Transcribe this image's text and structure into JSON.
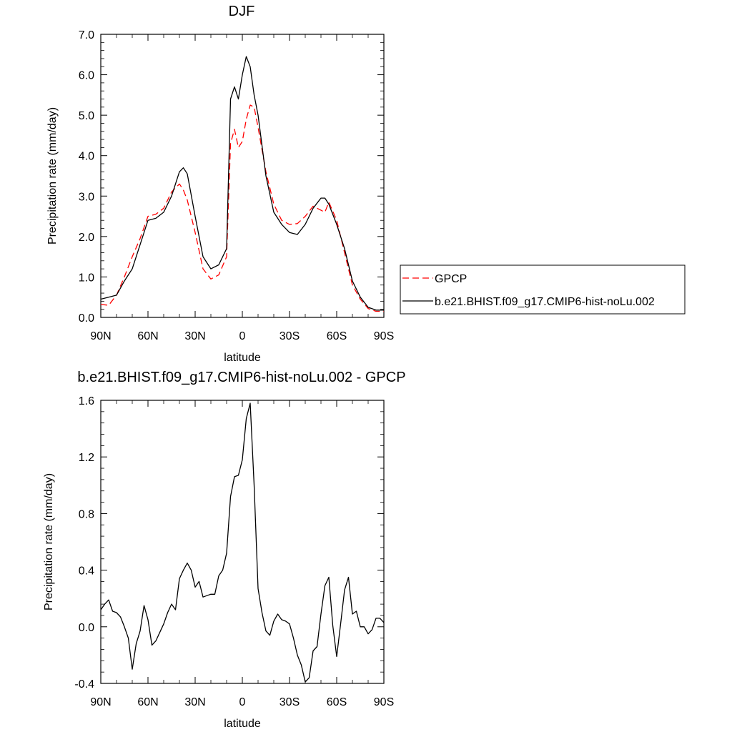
{
  "figure": {
    "legend": {
      "entries": [
        {
          "label": "GPCP",
          "color": "#ff0000",
          "dash": "dashed"
        },
        {
          "label": "b.e21.BHIST.f09_g17.CMIP6-hist-noLu.002",
          "color": "#000000",
          "dash": "solid"
        }
      ],
      "placement": "right of top panel"
    }
  },
  "chart_data": [
    {
      "type": "line",
      "title": "DJF",
      "xlabel": "latitude",
      "ylabel": "Precipitation rate (mm/day)",
      "xlim": [
        90,
        -90
      ],
      "ylim": [
        0,
        7
      ],
      "x_ticks": [
        90,
        60,
        30,
        0,
        -30,
        -60,
        -90
      ],
      "x_tick_labels": [
        "90N",
        "60N",
        "30N",
        "0",
        "30S",
        "60S",
        "90S"
      ],
      "y_ticks": [
        0,
        1,
        2,
        3,
        4,
        5,
        6,
        7
      ],
      "y_tick_labels": [
        "0.0",
        "1.0",
        "2.0",
        "3.0",
        "4.0",
        "5.0",
        "6.0",
        "7.0"
      ],
      "grid": false,
      "x": [
        90,
        85,
        80,
        75,
        70,
        65,
        60,
        55,
        50,
        45,
        40,
        37.5,
        35,
        30,
        25,
        20,
        15,
        10,
        7.5,
        5,
        2.5,
        0,
        -2.5,
        -5,
        -7.5,
        -10,
        -15,
        -20,
        -25,
        -30,
        -35,
        -40,
        -45,
        -50,
        -52.5,
        -55,
        -60,
        -65,
        -70,
        -75,
        -80,
        -85,
        -90
      ],
      "series": [
        {
          "name": "GPCP",
          "color": "#ff0000",
          "dash": "dashed",
          "values": [
            0.32,
            0.3,
            0.55,
            1.0,
            1.5,
            1.95,
            2.5,
            2.55,
            2.7,
            3.1,
            3.3,
            3.15,
            2.9,
            2.1,
            1.2,
            0.95,
            1.05,
            1.5,
            4.3,
            4.65,
            4.2,
            4.35,
            4.9,
            5.25,
            5.2,
            4.7,
            3.6,
            2.8,
            2.4,
            2.3,
            2.32,
            2.5,
            2.75,
            2.65,
            2.6,
            2.85,
            2.4,
            1.6,
            0.8,
            0.45,
            0.22,
            0.15,
            0.15
          ]
        },
        {
          "name": "b.e21.BHIST.f09_g17.CMIP6-hist-noLu.002",
          "color": "#000000",
          "dash": "solid",
          "values": [
            0.45,
            0.5,
            0.55,
            0.9,
            1.2,
            1.8,
            2.4,
            2.45,
            2.6,
            3.0,
            3.6,
            3.7,
            3.55,
            2.5,
            1.5,
            1.2,
            1.3,
            1.7,
            5.4,
            5.7,
            5.4,
            6.0,
            6.45,
            6.2,
            5.5,
            5.0,
            3.5,
            2.6,
            2.3,
            2.1,
            2.05,
            2.3,
            2.7,
            2.95,
            2.95,
            2.8,
            2.3,
            1.7,
            0.9,
            0.5,
            0.25,
            0.18,
            0.18
          ]
        }
      ]
    },
    {
      "type": "line",
      "title": "b.e21.BHIST.f09_g17.CMIP6-hist-noLu.002 - GPCP",
      "xlabel": "latitude",
      "ylabel": "Precipitation rate (mm/day)",
      "xlim": [
        90,
        -90
      ],
      "ylim": [
        -0.4,
        1.6
      ],
      "x_ticks": [
        90,
        60,
        30,
        0,
        -30,
        -60,
        -90
      ],
      "x_tick_labels": [
        "90N",
        "60N",
        "30N",
        "0",
        "30S",
        "60S",
        "90S"
      ],
      "y_ticks": [
        -0.4,
        0.0,
        0.4,
        0.8,
        1.2,
        1.6
      ],
      "y_tick_labels": [
        "-0.4",
        "0.0",
        "0.4",
        "0.8",
        "1.2",
        "1.6"
      ],
      "grid": false,
      "series": [
        {
          "name": "b.e21.BHIST.f09_g17.CMIP6-hist-noLu.002 - GPCP",
          "color": "#000000",
          "dash": "solid",
          "x": [
            90,
            87.5,
            85,
            82.5,
            80,
            77.5,
            75,
            72.5,
            70,
            67.5,
            65,
            62.5,
            60,
            57.5,
            55,
            52.5,
            50,
            47.5,
            45,
            42.5,
            40,
            37.5,
            35,
            32.5,
            30,
            27.5,
            25,
            22.5,
            20,
            17.5,
            15,
            12.5,
            10,
            7.5,
            5,
            2.5,
            0,
            -2.5,
            -5,
            -7.5,
            -10,
            -12.5,
            -15,
            -17.5,
            -20,
            -22.5,
            -25,
            -27.5,
            -30,
            -32.5,
            -35,
            -37.5,
            -40,
            -42.5,
            -45,
            -47.5,
            -50,
            -52.5,
            -55,
            -57.5,
            -60,
            -62.5,
            -65,
            -67.5,
            -70,
            -72.5,
            -75,
            -77.5,
            -80,
            -82.5,
            -85,
            -87.5,
            -90
          ],
          "values": [
            0.12,
            0.16,
            0.19,
            0.11,
            0.1,
            0.07,
            0.0,
            -0.08,
            -0.3,
            -0.12,
            -0.03,
            0.15,
            0.05,
            -0.13,
            -0.1,
            -0.04,
            0.02,
            0.1,
            0.16,
            0.12,
            0.34,
            0.4,
            0.45,
            0.4,
            0.28,
            0.32,
            0.21,
            0.22,
            0.23,
            0.23,
            0.36,
            0.4,
            0.52,
            0.92,
            1.06,
            1.07,
            1.18,
            1.47,
            1.58,
            1.0,
            0.27,
            0.1,
            -0.03,
            -0.06,
            0.04,
            0.09,
            0.05,
            0.04,
            0.02,
            -0.08,
            -0.2,
            -0.27,
            -0.39,
            -0.36,
            -0.17,
            -0.14,
            0.09,
            0.29,
            0.35,
            0.01,
            -0.21,
            0.02,
            0.26,
            0.35,
            0.09,
            0.11,
            0.0,
            0.0,
            -0.05,
            -0.02,
            0.06,
            0.06,
            0.03
          ]
        }
      ]
    }
  ]
}
